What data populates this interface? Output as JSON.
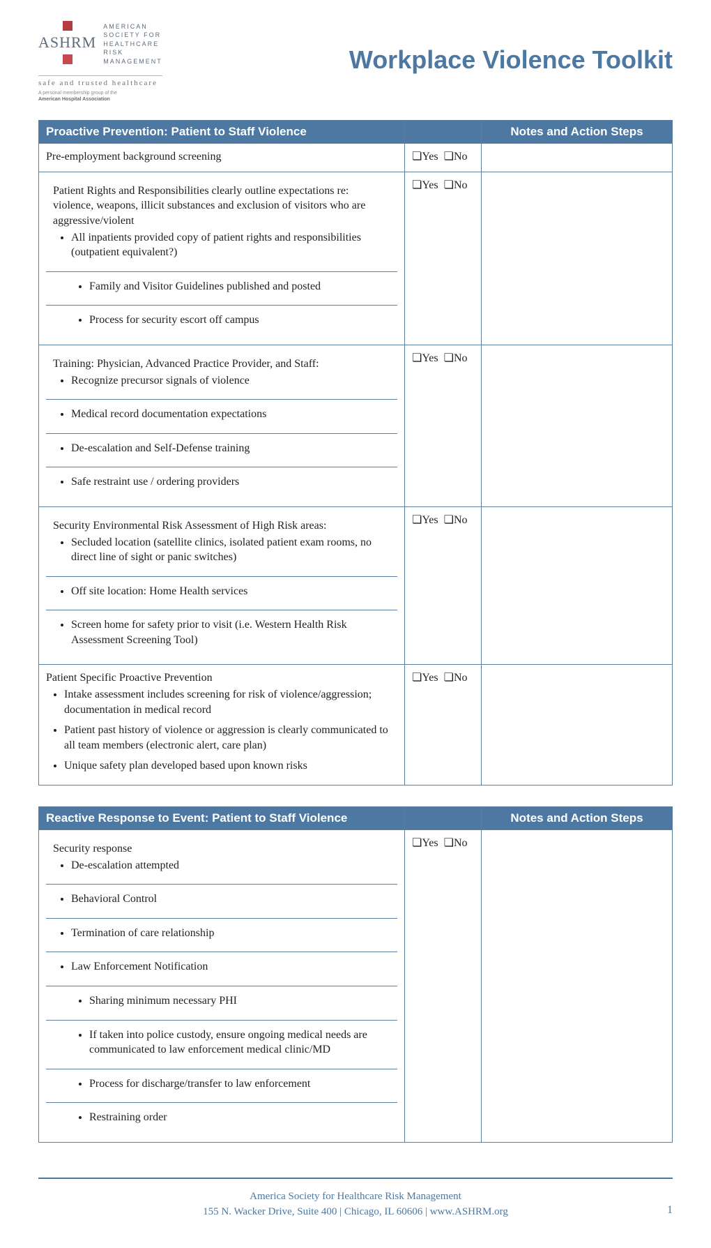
{
  "brand": {
    "acronym": "ASHRM",
    "org_lines": [
      "AMERICAN",
      "SOCIETY FOR",
      "HEALTHCARE",
      "RISK",
      "MANAGEMENT"
    ],
    "tagline": "safe and trusted healthcare",
    "subtag_line1": "A personal membership group of the",
    "subtag_line2": "American Hospital Association",
    "logo_colors": [
      "#b63a41",
      "#c94a4e"
    ]
  },
  "page_title": "Workplace Violence Toolkit",
  "colors": {
    "header_bg": "#4c78a1",
    "border": "#5b7fa3",
    "title": "#4c78a1",
    "footer": "#4c78a1"
  },
  "yesno": {
    "yes": "Yes",
    "no": "No"
  },
  "columns": {
    "notes": "Notes and Action Steps"
  },
  "table1": {
    "title": "Proactive Prevention: Patient to Staff Violence",
    "rows": [
      {
        "main": "Pre-employment background screening",
        "sub": [],
        "subsub": []
      },
      {
        "main": "Patient Rights and Responsibilities clearly outline expectations re: violence, weapons, illicit substances and exclusion of visitors who are aggressive/violent",
        "sub": [
          "All inpatients provided copy of patient rights and responsibilities (outpatient equivalent?)"
        ],
        "subsub": [
          "Family and Visitor Guidelines published and posted",
          "Process for security escort off campus"
        ]
      },
      {
        "main": "Training: Physician, Advanced Practice Provider, and Staff:",
        "sub": [
          "Recognize precursor signals of violence",
          "Medical record documentation expectations",
          "De-escalation and Self-Defense training",
          "Safe restraint use / ordering providers"
        ],
        "subsub": []
      },
      {
        "main": "Security Environmental Risk Assessment of High Risk areas:",
        "sub": [
          "Secluded location (satellite clinics, isolated patient exam rooms, no direct line of sight or panic switches)",
          "Off site location: Home Health services",
          "Screen home for safety prior to visit (i.e. Western Health Risk Assessment Screening Tool)"
        ],
        "subsub": []
      },
      {
        "main": "Patient Specific Proactive Prevention",
        "sub": [
          "Intake assessment includes screening for risk of violence/aggression; documentation in medical record",
          "Patient past history of violence or aggression is clearly communicated to all team members (electronic alert, care plan)",
          "Unique safety plan developed based upon known risks"
        ],
        "subsub": [],
        "tight": true
      }
    ]
  },
  "table2": {
    "title": "Reactive Response to Event:  Patient to Staff Violence",
    "rows": [
      {
        "main": "Security response",
        "sub": [
          "De-escalation attempted",
          "Behavioral Control",
          "Termination of care relationship",
          "Law Enforcement Notification"
        ],
        "subsub": [
          "Sharing minimum necessary PHI",
          "If taken into police custody, ensure ongoing  medical needs are communicated to law enforcement medical clinic/MD",
          "Process for discharge/transfer to law enforcement",
          "Restraining order"
        ]
      }
    ]
  },
  "footer": {
    "line1": "America Society for Healthcare Risk Management",
    "line2": "155 N. Wacker Drive, Suite 400  |  Chicago, IL  60606  |  www.ASHRM.org",
    "page_number": "1"
  }
}
